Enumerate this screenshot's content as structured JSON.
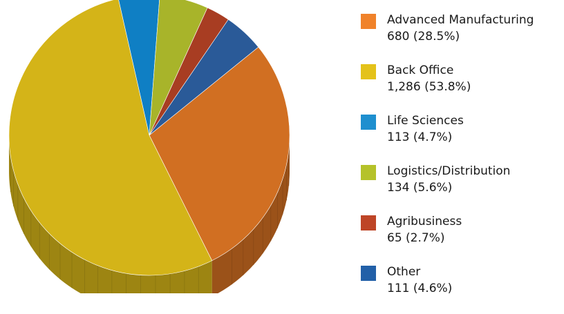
{
  "chart_data": {
    "type": "pie",
    "title": "",
    "slices": [
      {
        "label": "Advanced Manufacturing",
        "value": 680,
        "value_text": "680 (28.5%)",
        "percent": 28.5,
        "color": "#F0822A"
      },
      {
        "label": "Back Office",
        "value": 1286,
        "value_text": "1,286 (53.8%)",
        "percent": 53.8,
        "color": "#E4C21A"
      },
      {
        "label": "Life Sciences",
        "value": 113,
        "value_text": "113 (4.7%)",
        "percent": 4.7,
        "color": "#1E8FCF"
      },
      {
        "label": "Logistics/Distribution",
        "value": 134,
        "value_text": "134 (5.6%)",
        "percent": 5.6,
        "color": "#B5C22A"
      },
      {
        "label": "Agribusiness",
        "value": 65,
        "value_text": "65 (2.7%)",
        "percent": 2.7,
        "color": "#BE4527"
      },
      {
        "label": "Other",
        "value": 111,
        "value_text": "111 (4.6%)",
        "percent": 4.6,
        "color": "#2260A8"
      }
    ],
    "chart_colors": {
      "Advanced Manufacturing": "#D16F22",
      "Back Office": "#D4B418",
      "Life Sciences": "#0F7FC4",
      "Logistics/Distribution": "#A8B42A",
      "Agribusiness": "#A83D22",
      "Other": "#2A5A98"
    },
    "style": "3d-tilted",
    "legend_position": "right"
  }
}
